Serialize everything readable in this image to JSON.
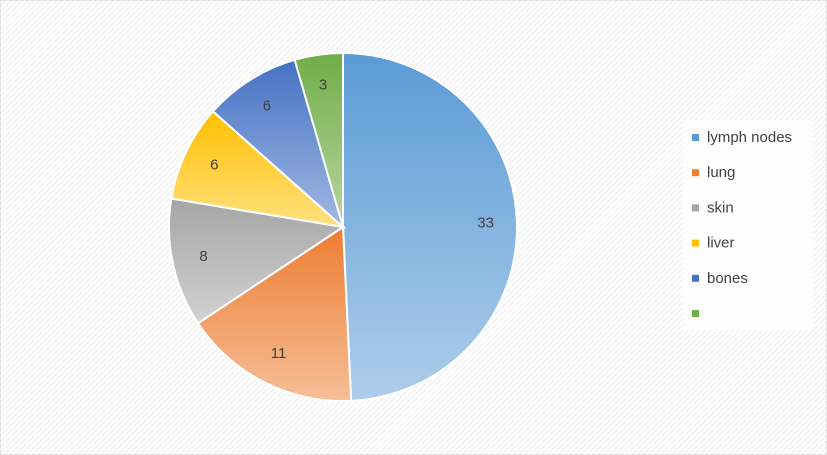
{
  "chart_data": {
    "type": "pie",
    "categories": [
      "lymph nodes",
      "lung",
      "skin",
      "liver",
      "bones",
      null
    ],
    "values": [
      33,
      11,
      8,
      6,
      6,
      3
    ],
    "colors": [
      "#5b9bd5",
      "#ed7d31",
      "#a5a5a5",
      "#ffc000",
      "#4472c4",
      "#70ad47"
    ],
    "legend": "right"
  }
}
